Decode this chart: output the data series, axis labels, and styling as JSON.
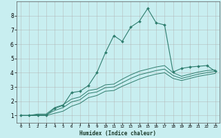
{
  "xlabel": "Humidex (Indice chaleur)",
  "bg_color": "#c8eef0",
  "grid_color": "#b0b0b0",
  "line_color": "#2e7d6e",
  "xlim": [
    -0.5,
    23.5
  ],
  "ylim": [
    0.5,
    9.0
  ],
  "x_ticks": [
    0,
    1,
    2,
    3,
    4,
    5,
    6,
    7,
    8,
    9,
    10,
    11,
    12,
    13,
    14,
    15,
    16,
    17,
    18,
    19,
    20,
    21,
    22,
    23
  ],
  "y_ticks": [
    1,
    2,
    3,
    4,
    5,
    6,
    7,
    8
  ],
  "series_main_x": [
    0,
    1,
    2,
    3,
    4,
    5,
    6,
    7,
    8,
    9,
    10,
    11,
    12,
    13,
    14,
    15,
    16,
    17,
    18,
    19,
    20,
    21,
    22,
    23
  ],
  "series_main_y": [
    1.0,
    1.0,
    1.0,
    1.0,
    1.5,
    1.7,
    2.6,
    2.7,
    3.1,
    4.0,
    5.4,
    6.6,
    6.2,
    7.2,
    7.6,
    8.5,
    7.5,
    7.35,
    4.05,
    4.3,
    4.4,
    4.45,
    4.5,
    4.1
  ],
  "series1_x": [
    0,
    1,
    2,
    3,
    4,
    5,
    6,
    7,
    8,
    9,
    10,
    11,
    12,
    13,
    14,
    15,
    16,
    17,
    18,
    19,
    20,
    21,
    22,
    23
  ],
  "series1_y": [
    1.0,
    1.0,
    1.1,
    1.1,
    1.55,
    1.75,
    2.15,
    2.3,
    2.75,
    2.85,
    3.15,
    3.2,
    3.55,
    3.85,
    4.1,
    4.25,
    4.4,
    4.5,
    4.0,
    3.75,
    3.9,
    4.05,
    4.15,
    4.2
  ],
  "series2_x": [
    0,
    1,
    2,
    3,
    4,
    5,
    6,
    7,
    8,
    9,
    10,
    11,
    12,
    13,
    14,
    15,
    16,
    17,
    18,
    19,
    20,
    21,
    22,
    23
  ],
  "series2_y": [
    1.0,
    1.0,
    1.05,
    1.05,
    1.35,
    1.55,
    1.95,
    2.1,
    2.55,
    2.65,
    2.95,
    3.0,
    3.3,
    3.6,
    3.85,
    4.0,
    4.15,
    4.25,
    3.8,
    3.6,
    3.75,
    3.9,
    4.0,
    4.1
  ],
  "series3_x": [
    0,
    1,
    2,
    3,
    4,
    5,
    6,
    7,
    8,
    9,
    10,
    11,
    12,
    13,
    14,
    15,
    16,
    17,
    18,
    19,
    20,
    21,
    22,
    23
  ],
  "series3_y": [
    1.0,
    1.0,
    1.0,
    1.0,
    1.15,
    1.3,
    1.65,
    1.85,
    2.25,
    2.4,
    2.7,
    2.75,
    3.05,
    3.3,
    3.55,
    3.75,
    3.9,
    4.0,
    3.6,
    3.45,
    3.6,
    3.75,
    3.85,
    3.95
  ]
}
